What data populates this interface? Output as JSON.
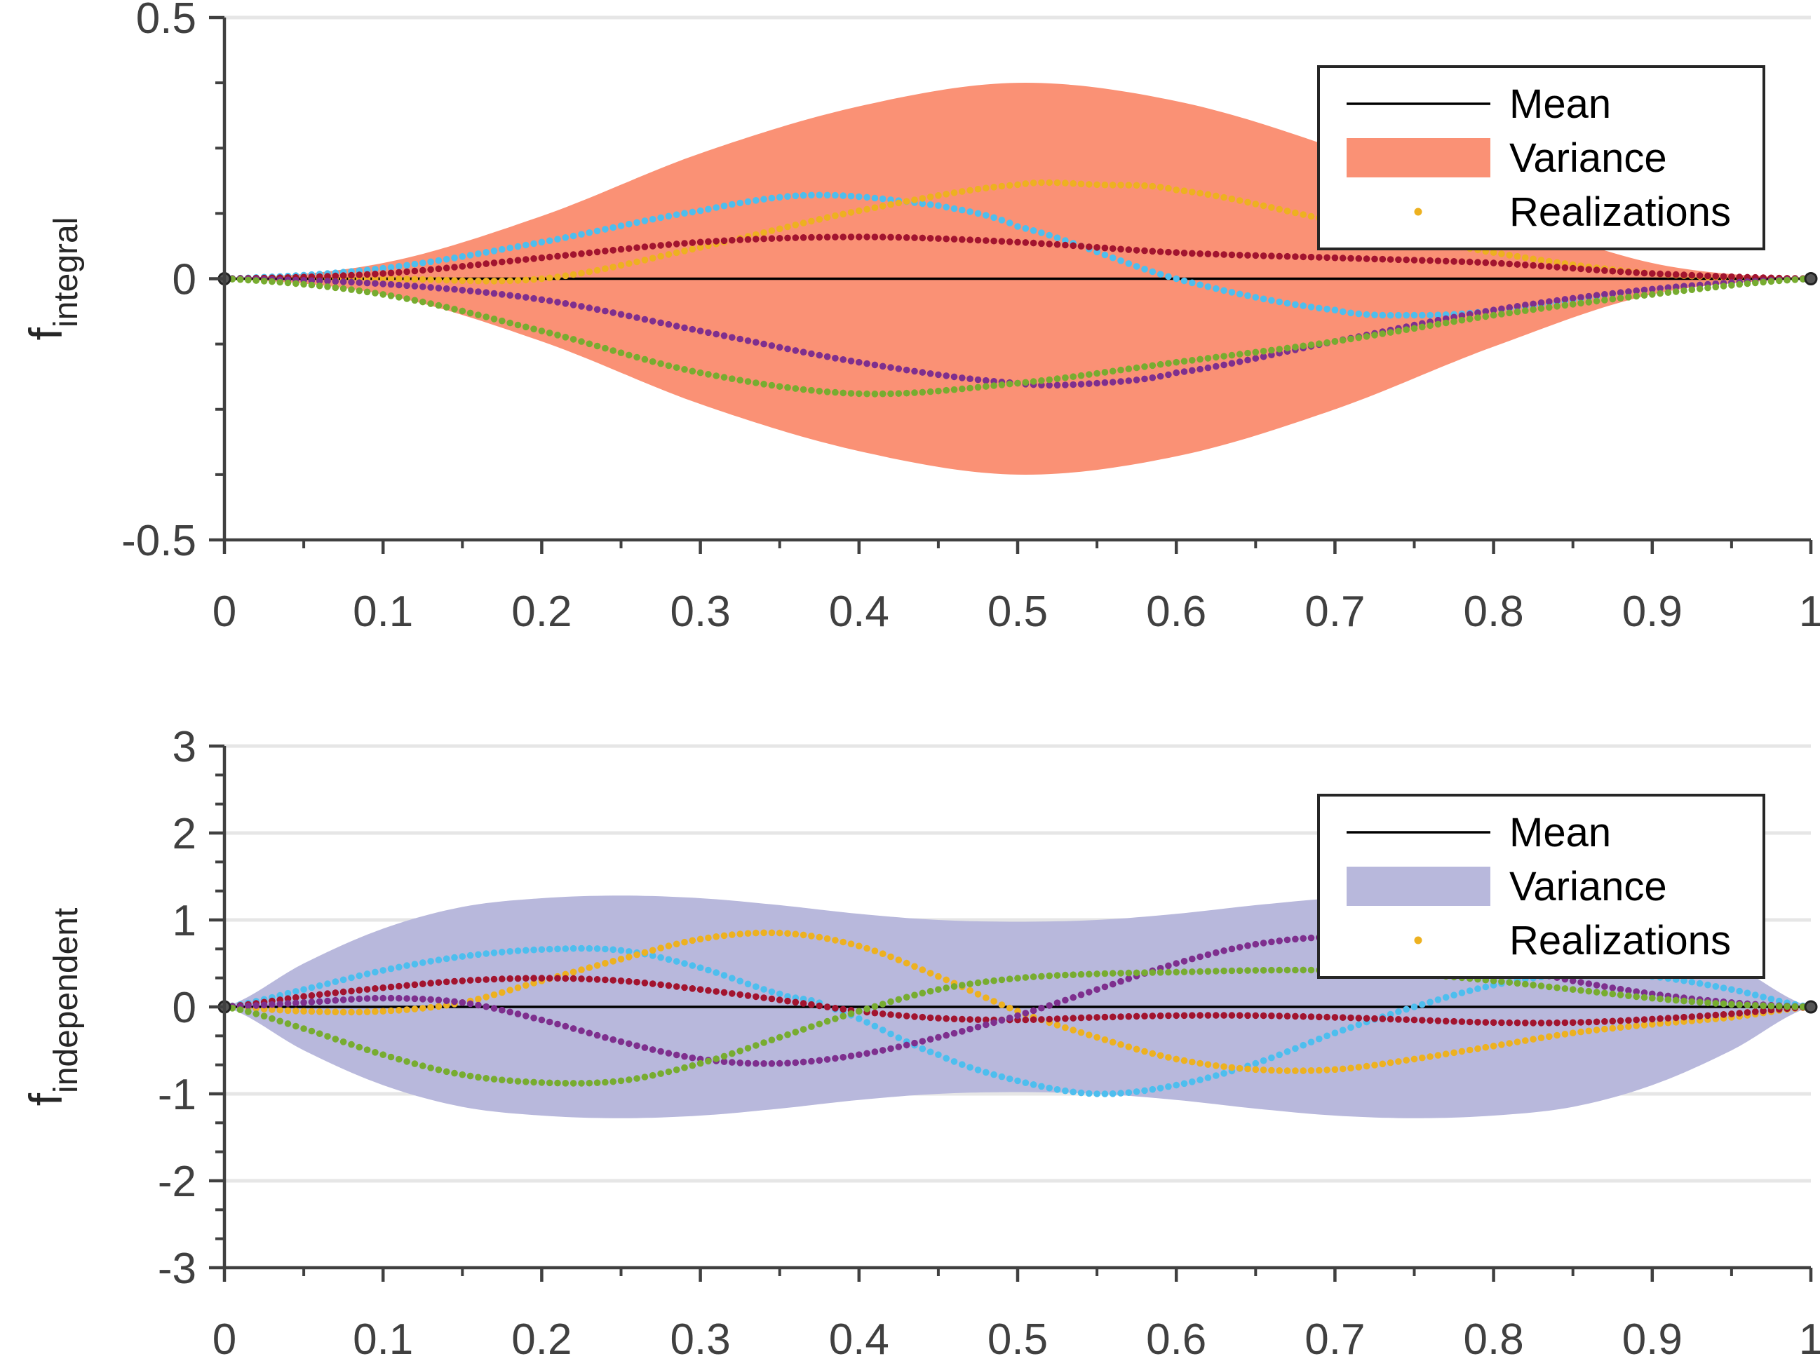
{
  "chart_data": [
    {
      "type": "line",
      "title": "",
      "xlabel": "",
      "ylabel": {
        "main": "f",
        "sub": "integral"
      },
      "xlim": [
        0,
        1
      ],
      "ylim": [
        -0.5,
        0.5
      ],
      "xticks": [
        "0",
        "0.1",
        "0.2",
        "0.3",
        "0.4",
        "0.5",
        "0.6",
        "0.7",
        "0.8",
        "0.9",
        "1"
      ],
      "yticks": [
        "-0.5",
        "0",
        "0.5"
      ],
      "grid": true,
      "legend_position": "top-right",
      "legend": [
        "Mean",
        "Variance",
        "Realizations"
      ],
      "variance_color": "#fa9175",
      "band": {
        "x": [
          0,
          0.1,
          0.2,
          0.3,
          0.4,
          0.5,
          0.6,
          0.7,
          0.8,
          0.9,
          1
        ],
        "upper": [
          0,
          0.03,
          0.12,
          0.24,
          0.33,
          0.375,
          0.34,
          0.25,
          0.13,
          0.03,
          0
        ],
        "lower": [
          0,
          -0.03,
          -0.12,
          -0.24,
          -0.33,
          -0.375,
          -0.34,
          -0.25,
          -0.13,
          -0.03,
          0
        ]
      },
      "mean": {
        "x": [
          0,
          1
        ],
        "y": [
          0,
          0
        ]
      },
      "series": [
        {
          "color": "#4dbeee",
          "x": [
            0,
            0.1,
            0.2,
            0.3,
            0.37,
            0.45,
            0.5,
            0.6,
            0.7,
            0.75,
            0.8,
            0.9,
            1
          ],
          "y": [
            0,
            0.02,
            0.07,
            0.13,
            0.16,
            0.14,
            0.1,
            0,
            -0.06,
            -0.07,
            -0.06,
            -0.02,
            0
          ]
        },
        {
          "color": "#edb120",
          "x": [
            0,
            0.1,
            0.2,
            0.3,
            0.4,
            0.5,
            0.55,
            0.6,
            0.7,
            0.8,
            0.9,
            1
          ],
          "y": [
            0,
            0,
            0,
            0.06,
            0.13,
            0.18,
            0.18,
            0.17,
            0.11,
            0.05,
            0.01,
            0
          ]
        },
        {
          "color": "#a2142f",
          "x": [
            0,
            0.1,
            0.2,
            0.3,
            0.4,
            0.5,
            0.6,
            0.7,
            0.8,
            0.9,
            1
          ],
          "y": [
            0,
            0.01,
            0.04,
            0.07,
            0.08,
            0.07,
            0.05,
            0.04,
            0.03,
            0.01,
            0
          ]
        },
        {
          "color": "#7e2f8e",
          "x": [
            0,
            0.1,
            0.2,
            0.3,
            0.4,
            0.5,
            0.55,
            0.6,
            0.7,
            0.8,
            0.9,
            1
          ],
          "y": [
            0,
            -0.01,
            -0.04,
            -0.1,
            -0.16,
            -0.2,
            -0.2,
            -0.18,
            -0.12,
            -0.06,
            -0.02,
            0
          ]
        },
        {
          "color": "#77ac30",
          "x": [
            0,
            0.1,
            0.2,
            0.3,
            0.4,
            0.5,
            0.6,
            0.7,
            0.8,
            0.9,
            1
          ],
          "y": [
            0,
            -0.03,
            -0.1,
            -0.18,
            -0.22,
            -0.2,
            -0.16,
            -0.12,
            -0.07,
            -0.03,
            0
          ]
        }
      ]
    },
    {
      "type": "line",
      "title": "",
      "xlabel": "",
      "ylabel": {
        "main": "f",
        "sub": "independent"
      },
      "xlim": [
        0,
        1
      ],
      "ylim": [
        -3,
        3
      ],
      "xticks": [
        "0",
        "0.1",
        "0.2",
        "0.3",
        "0.4",
        "0.5",
        "0.6",
        "0.7",
        "0.8",
        "0.9",
        "1"
      ],
      "yticks": [
        "-3",
        "-2",
        "-1",
        "0",
        "1",
        "2",
        "3"
      ],
      "grid": true,
      "legend_position": "top-right",
      "legend": [
        "Mean",
        "Variance",
        "Realizations"
      ],
      "variance_color": "#b8b8dc",
      "band": {
        "x": [
          0,
          0.05,
          0.1,
          0.15,
          0.2,
          0.25,
          0.3,
          0.35,
          0.4,
          0.45,
          0.5,
          0.55,
          0.6,
          0.65,
          0.7,
          0.75,
          0.8,
          0.85,
          0.9,
          0.95,
          1
        ],
        "upper": [
          0,
          0.5,
          0.9,
          1.15,
          1.25,
          1.28,
          1.25,
          1.17,
          1.07,
          1.0,
          0.98,
          1.0,
          1.07,
          1.17,
          1.25,
          1.28,
          1.25,
          1.15,
          0.9,
          0.5,
          0
        ],
        "lower": [
          0,
          -0.5,
          -0.9,
          -1.15,
          -1.25,
          -1.28,
          -1.25,
          -1.17,
          -1.07,
          -1.0,
          -0.98,
          -1.0,
          -1.07,
          -1.17,
          -1.25,
          -1.28,
          -1.25,
          -1.15,
          -0.9,
          -0.5,
          0
        ]
      },
      "mean": {
        "x": [
          0,
          1
        ],
        "y": [
          0,
          0
        ]
      },
      "series": [
        {
          "color": "#4dbeee",
          "x": [
            0,
            0.05,
            0.1,
            0.15,
            0.2,
            0.25,
            0.3,
            0.35,
            0.38,
            0.45,
            0.5,
            0.55,
            0.6,
            0.65,
            0.7,
            0.75,
            0.8,
            0.85,
            0.9,
            0.95,
            1
          ],
          "y": [
            0,
            0.2,
            0.42,
            0.58,
            0.66,
            0.65,
            0.45,
            0.15,
            0,
            -0.55,
            -0.85,
            -1.0,
            -0.9,
            -0.65,
            -0.3,
            0,
            0.25,
            0.38,
            0.35,
            0.2,
            0
          ]
        },
        {
          "color": "#edb120",
          "x": [
            0,
            0.05,
            0.1,
            0.15,
            0.2,
            0.25,
            0.3,
            0.35,
            0.4,
            0.45,
            0.5,
            0.55,
            0.6,
            0.65,
            0.7,
            0.75,
            0.8,
            0.85,
            0.9,
            0.95,
            1
          ],
          "y": [
            0,
            -0.05,
            -0.05,
            0.05,
            0.3,
            0.55,
            0.78,
            0.85,
            0.7,
            0.35,
            -0.05,
            -0.35,
            -0.6,
            -0.72,
            -0.72,
            -0.6,
            -0.45,
            -0.3,
            -0.2,
            -0.12,
            0
          ]
        },
        {
          "color": "#a2142f",
          "x": [
            0,
            0.05,
            0.1,
            0.15,
            0.2,
            0.25,
            0.3,
            0.35,
            0.4,
            0.45,
            0.5,
            0.55,
            0.6,
            0.65,
            0.7,
            0.75,
            0.8,
            0.85,
            0.9,
            0.95,
            1
          ],
          "y": [
            0,
            0.12,
            0.22,
            0.3,
            0.33,
            0.3,
            0.2,
            0.08,
            -0.05,
            -0.13,
            -0.15,
            -0.12,
            -0.1,
            -0.1,
            -0.12,
            -0.15,
            -0.18,
            -0.18,
            -0.14,
            -0.08,
            0
          ]
        },
        {
          "color": "#7e2f8e",
          "x": [
            0,
            0.05,
            0.1,
            0.15,
            0.2,
            0.25,
            0.3,
            0.35,
            0.4,
            0.45,
            0.5,
            0.55,
            0.6,
            0.65,
            0.7,
            0.75,
            0.8,
            0.85,
            0.9,
            0.95,
            1
          ],
          "y": [
            0,
            0.05,
            0.1,
            0.05,
            -0.15,
            -0.4,
            -0.6,
            -0.65,
            -0.55,
            -0.35,
            -0.1,
            0.2,
            0.5,
            0.72,
            0.8,
            0.7,
            0.5,
            0.3,
            0.15,
            0.05,
            0
          ]
        },
        {
          "color": "#77ac30",
          "x": [
            0,
            0.05,
            0.1,
            0.15,
            0.2,
            0.25,
            0.3,
            0.35,
            0.4,
            0.45,
            0.5,
            0.55,
            0.6,
            0.65,
            0.7,
            0.75,
            0.8,
            0.85,
            0.9,
            0.95,
            1
          ],
          "y": [
            0,
            -0.25,
            -0.55,
            -0.78,
            -0.87,
            -0.85,
            -0.65,
            -0.35,
            -0.05,
            0.2,
            0.33,
            0.38,
            0.4,
            0.42,
            0.42,
            0.38,
            0.3,
            0.2,
            0.1,
            0.03,
            0
          ]
        }
      ]
    }
  ]
}
